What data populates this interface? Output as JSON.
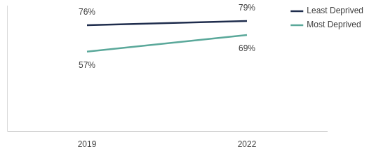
{
  "chart_data": {
    "type": "line",
    "categories": [
      "2019",
      "2022"
    ],
    "series": [
      {
        "name": "Least Deprived",
        "color": "#1f2d4d",
        "values": [
          76,
          79
        ],
        "value_labels": [
          "76%",
          "79%"
        ]
      },
      {
        "name": "Most Deprived",
        "color": "#5aa89a",
        "values": [
          57,
          69
        ],
        "value_labels": [
          "57%",
          "69%"
        ]
      }
    ],
    "ylim": [
      0,
      90
    ],
    "grid": false,
    "legend": "upper right",
    "data_labels": true,
    "tick_labels": "x",
    "marker": "none"
  }
}
